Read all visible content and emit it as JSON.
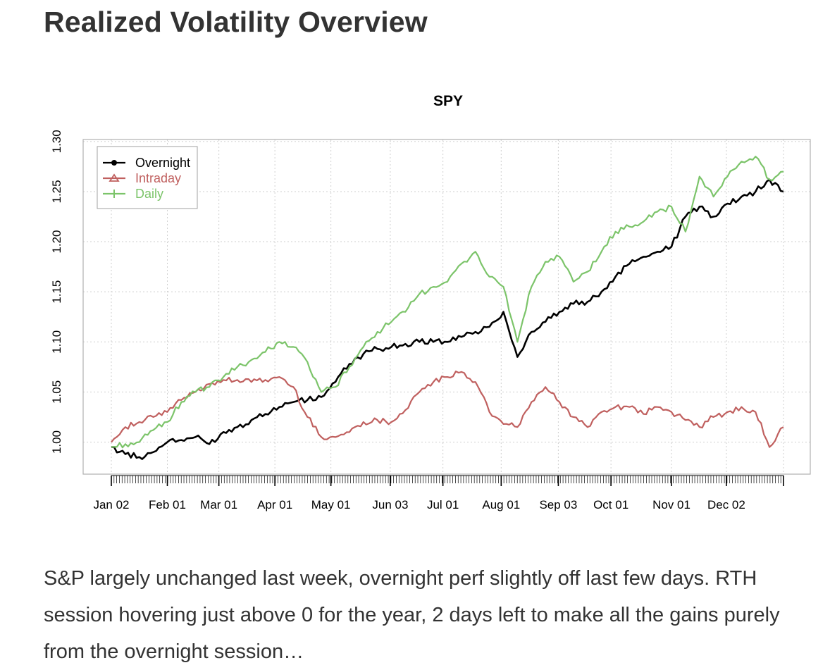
{
  "page": {
    "title": "Realized Volatility Overview",
    "paragraph": "S&P largely unchanged last week, overnight perf slightly off last few days. RTH session hovering just above 0 for the year, 2 days left to make all the gains purely from the overnight session…"
  },
  "chart_data": {
    "type": "line",
    "title": "SPY",
    "xlabel": "",
    "ylabel": "",
    "x_tick_labels": [
      "Jan 02",
      "Feb 01",
      "Mar 01",
      "Apr 01",
      "May 01",
      "Jun 03",
      "Jul 01",
      "Aug 01",
      "Sep 03",
      "Oct 01",
      "Nov 01",
      "Dec 02"
    ],
    "y_tick_labels": [
      "1.00",
      "1.05",
      "1.10",
      "1.15",
      "1.20",
      "1.25",
      "1.30"
    ],
    "ylim": [
      0.968,
      1.302
    ],
    "x_range_months": [
      0,
      12
    ],
    "grid": true,
    "legend_position": "top-left",
    "x": [
      0.0,
      0.25,
      0.5,
      0.75,
      1.0,
      1.25,
      1.5,
      1.75,
      2.0,
      2.25,
      2.5,
      2.75,
      3.0,
      3.25,
      3.5,
      3.75,
      4.0,
      4.25,
      4.5,
      4.75,
      5.0,
      5.25,
      5.5,
      5.75,
      6.0,
      6.25,
      6.5,
      6.75,
      7.0,
      7.25,
      7.5,
      7.75,
      8.0,
      8.25,
      8.5,
      8.75,
      9.0,
      9.25,
      9.5,
      9.75,
      10.0,
      10.25,
      10.5,
      10.75,
      11.0,
      11.25,
      11.5,
      11.75,
      12.0
    ],
    "series": [
      {
        "name": "Overnight",
        "color": "#000000",
        "values": [
          0.995,
          0.988,
          0.985,
          0.99,
          1.0,
          1.002,
          1.005,
          0.998,
          1.01,
          1.015,
          1.022,
          1.028,
          1.035,
          1.04,
          1.042,
          1.045,
          1.06,
          1.078,
          1.088,
          1.093,
          1.095,
          1.098,
          1.1,
          1.1,
          1.1,
          1.105,
          1.11,
          1.115,
          1.13,
          1.085,
          1.11,
          1.12,
          1.13,
          1.138,
          1.14,
          1.15,
          1.165,
          1.178,
          1.185,
          1.19,
          1.195,
          1.225,
          1.235,
          1.225,
          1.238,
          1.245,
          1.25,
          1.262,
          1.25
        ]
      },
      {
        "name": "Intraday",
        "color": "#c0605f",
        "values": [
          1.0,
          1.015,
          1.02,
          1.025,
          1.03,
          1.042,
          1.05,
          1.058,
          1.062,
          1.062,
          1.06,
          1.062,
          1.065,
          1.055,
          1.025,
          1.005,
          1.005,
          1.01,
          1.02,
          1.022,
          1.02,
          1.032,
          1.05,
          1.06,
          1.065,
          1.07,
          1.06,
          1.03,
          1.018,
          1.015,
          1.04,
          1.055,
          1.04,
          1.025,
          1.015,
          1.03,
          1.035,
          1.035,
          1.028,
          1.035,
          1.03,
          1.022,
          1.015,
          1.025,
          1.03,
          1.035,
          1.03,
          0.995,
          1.015
        ]
      },
      {
        "name": "Daily",
        "color": "#7cc46a",
        "values": [
          0.995,
          0.998,
          1.0,
          1.012,
          1.02,
          1.04,
          1.05,
          1.055,
          1.065,
          1.075,
          1.082,
          1.09,
          1.1,
          1.095,
          1.08,
          1.05,
          1.055,
          1.075,
          1.095,
          1.11,
          1.12,
          1.13,
          1.148,
          1.155,
          1.16,
          1.178,
          1.19,
          1.165,
          1.155,
          1.1,
          1.155,
          1.18,
          1.185,
          1.16,
          1.17,
          1.19,
          1.21,
          1.215,
          1.22,
          1.23,
          1.235,
          1.21,
          1.265,
          1.245,
          1.265,
          1.28,
          1.285,
          1.262,
          1.27
        ]
      }
    ]
  }
}
